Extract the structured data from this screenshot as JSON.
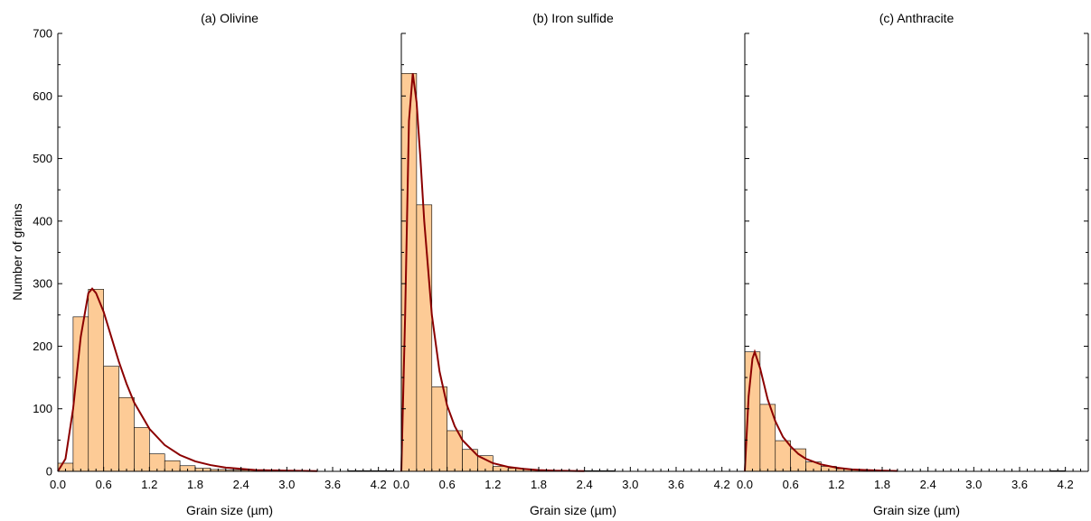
{
  "chart_data": {
    "type": "bar",
    "ylabel": "Number of grains",
    "ylim": [
      0,
      700
    ],
    "yticks": [
      0,
      100,
      200,
      300,
      400,
      500,
      600,
      700
    ],
    "xlim": [
      0,
      4.5
    ],
    "bin_width": 0.2,
    "bin_starts": [
      0.0,
      0.2,
      0.4,
      0.6,
      0.8,
      1.0,
      1.2,
      1.4,
      1.6,
      1.8,
      2.0,
      2.2,
      2.4,
      2.6,
      2.8,
      3.0,
      3.2,
      3.4,
      3.6,
      3.8,
      4.0,
      4.2
    ],
    "xtick_labels": [
      "0.0",
      "0.6",
      "1.2",
      "1.8",
      "2.4",
      "3.0",
      "3.6",
      "4.2"
    ],
    "bar_color": "#FDCB96",
    "fit_color": "#8B0000",
    "panels": [
      {
        "title": "(a) Olivine",
        "xlabel": "Grain size (µm)",
        "values": [
          13,
          247,
          291,
          168,
          118,
          70,
          28,
          17,
          9,
          5,
          3,
          2,
          2,
          0,
          0,
          1,
          1,
          0,
          0,
          1,
          1,
          1
        ],
        "fit": [
          [
            0.0,
            0
          ],
          [
            0.1,
            20
          ],
          [
            0.2,
            100
          ],
          [
            0.3,
            215
          ],
          [
            0.4,
            285
          ],
          [
            0.45,
            292
          ],
          [
            0.5,
            285
          ],
          [
            0.6,
            255
          ],
          [
            0.7,
            215
          ],
          [
            0.8,
            175
          ],
          [
            0.9,
            140
          ],
          [
            1.0,
            110
          ],
          [
            1.2,
            68
          ],
          [
            1.4,
            42
          ],
          [
            1.6,
            26
          ],
          [
            1.8,
            16
          ],
          [
            2.0,
            10
          ],
          [
            2.2,
            6
          ],
          [
            2.4,
            4
          ],
          [
            2.6,
            2
          ],
          [
            3.0,
            1
          ],
          [
            3.4,
            0.3
          ]
        ]
      },
      {
        "title": "(b) Iron sulfide",
        "xlabel": "Grain size (µm)",
        "values": [
          636,
          426,
          135,
          65,
          35,
          25,
          8,
          5,
          3,
          1,
          0,
          0,
          1,
          1,
          0,
          0,
          0,
          0,
          0,
          0,
          0,
          0
        ],
        "fit": [
          [
            0.0,
            0
          ],
          [
            0.05,
            250
          ],
          [
            0.1,
            560
          ],
          [
            0.15,
            636
          ],
          [
            0.2,
            590
          ],
          [
            0.25,
            500
          ],
          [
            0.3,
            400
          ],
          [
            0.4,
            250
          ],
          [
            0.5,
            160
          ],
          [
            0.6,
            105
          ],
          [
            0.7,
            72
          ],
          [
            0.8,
            50
          ],
          [
            1.0,
            25
          ],
          [
            1.2,
            13
          ],
          [
            1.4,
            7
          ],
          [
            1.6,
            4
          ],
          [
            1.8,
            2
          ],
          [
            2.0,
            1
          ],
          [
            2.4,
            0.3
          ]
        ]
      },
      {
        "title": "(c) Anthracite",
        "xlabel": "Grain size (µm)",
        "values": [
          191,
          107,
          49,
          36,
          15,
          8,
          4,
          3,
          1,
          0,
          0,
          0,
          0,
          0,
          0,
          0,
          0,
          0,
          0,
          0,
          1,
          0
        ],
        "fit": [
          [
            0.0,
            0
          ],
          [
            0.05,
            120
          ],
          [
            0.1,
            180
          ],
          [
            0.13,
            191
          ],
          [
            0.2,
            165
          ],
          [
            0.3,
            115
          ],
          [
            0.4,
            80
          ],
          [
            0.5,
            55
          ],
          [
            0.6,
            40
          ],
          [
            0.7,
            28
          ],
          [
            0.8,
            20
          ],
          [
            1.0,
            11
          ],
          [
            1.2,
            6
          ],
          [
            1.4,
            3
          ],
          [
            1.6,
            2
          ],
          [
            1.8,
            1
          ],
          [
            2.0,
            0.5
          ]
        ]
      }
    ]
  }
}
